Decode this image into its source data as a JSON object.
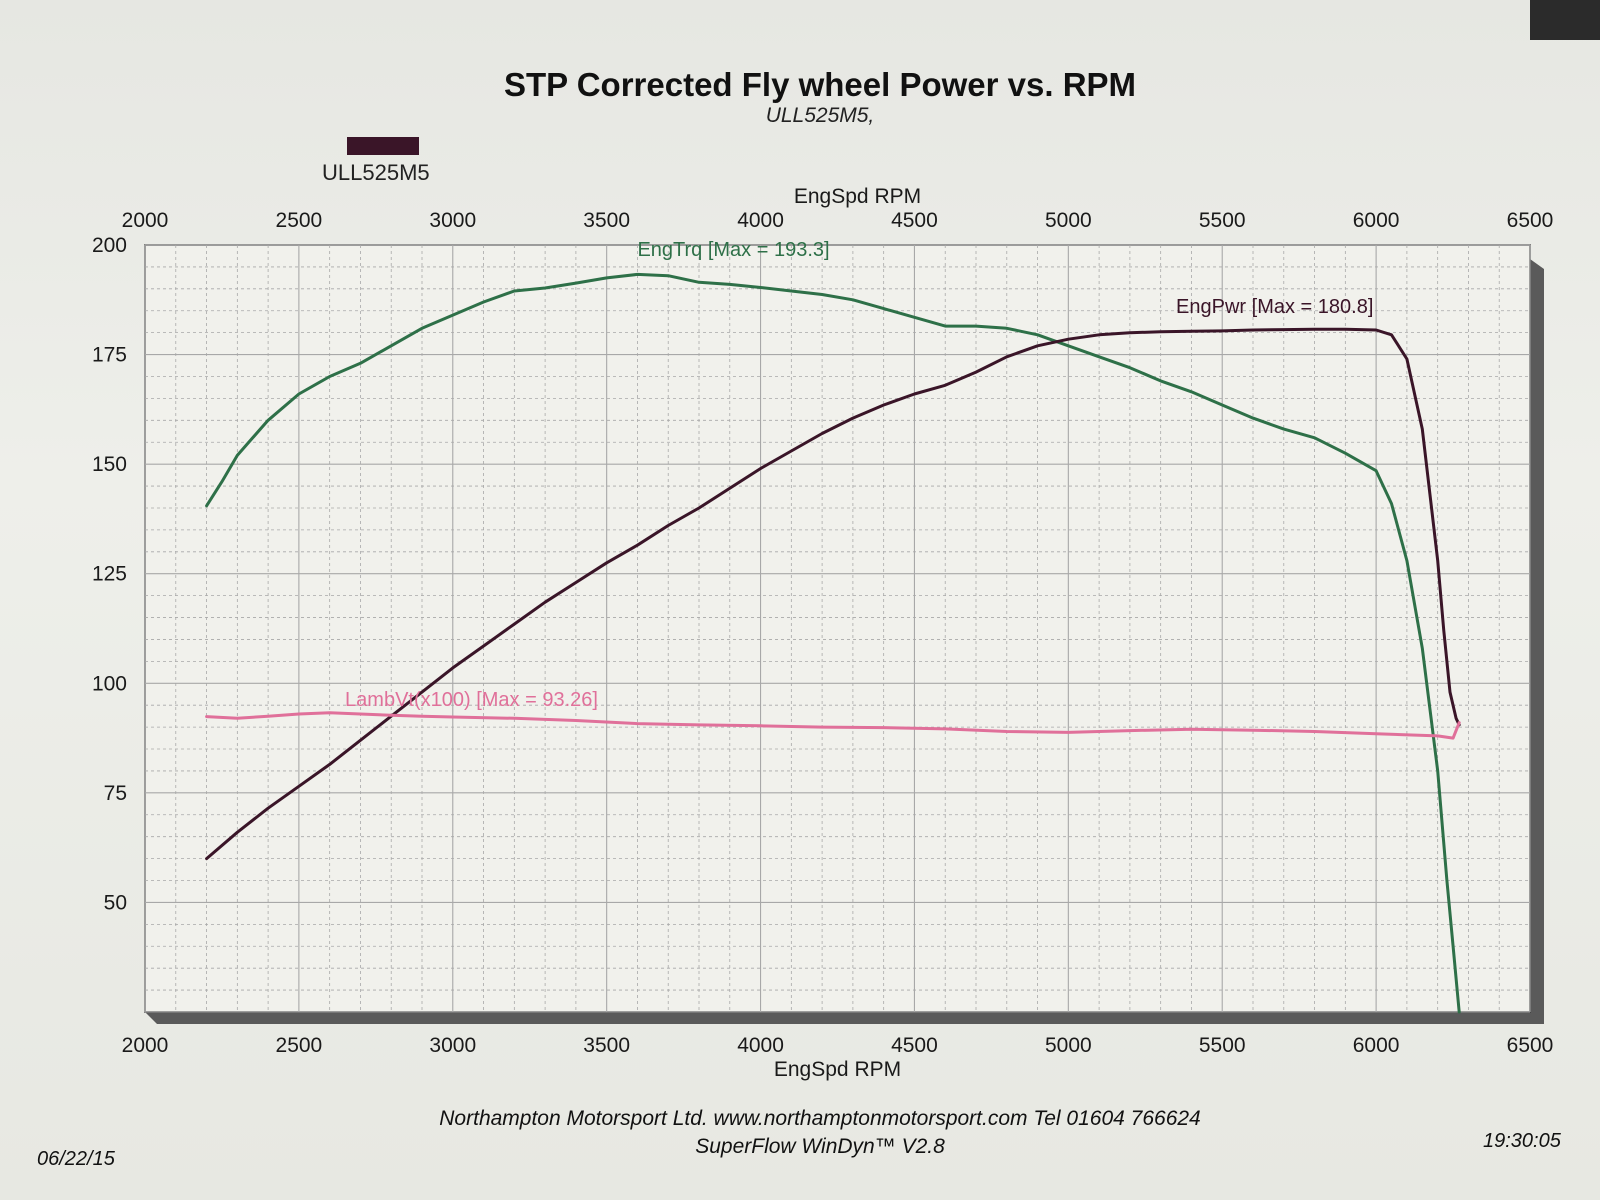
{
  "page": {
    "title": "STP Corrected Fly wheel Power vs. RPM",
    "subtitle": "ULL525M5,",
    "legend_label": "ULL525M5",
    "footer_company": "Northampton Motorsport Ltd. www.northamptonmotorsport.com Tel 01604 766624",
    "footer_software": "SuperFlow WinDyn™ V2.8",
    "date": "06/22/15",
    "time": "19:30:05"
  },
  "colors": {
    "torque": "#2e7048",
    "power": "#3a1528",
    "lambda": "#e0709a",
    "grid": "#a8a8a8",
    "legend_swatch": "#3a1528"
  },
  "chart_data": {
    "type": "line",
    "title": "STP Corrected Fly wheel Power vs. RPM",
    "subtitle": "ULL525M5,",
    "xlabel": "EngSpd  RPM",
    "xlim": [
      2000,
      6500
    ],
    "ylim": [
      25,
      200
    ],
    "x_ticks": [
      2000,
      2500,
      3000,
      3500,
      4000,
      4500,
      5000,
      5500,
      6000,
      6500
    ],
    "y_ticks": [
      50,
      75,
      100,
      125,
      150,
      175,
      200
    ],
    "grid": true,
    "legend": [
      {
        "name": "ULL525M5",
        "position": "top-left"
      }
    ],
    "series": [
      {
        "name": "EngTrq [Max = 193.3]",
        "color_key": "torque",
        "x": [
          2200,
          2250,
          2300,
          2350,
          2400,
          2500,
          2600,
          2700,
          2800,
          2900,
          3000,
          3100,
          3200,
          3300,
          3400,
          3500,
          3600,
          3700,
          3800,
          3900,
          4000,
          4100,
          4200,
          4300,
          4400,
          4500,
          4600,
          4700,
          4800,
          4900,
          5000,
          5100,
          5200,
          5300,
          5400,
          5500,
          5600,
          5700,
          5800,
          5900,
          6000,
          6050,
          6100,
          6150,
          6200,
          6230,
          6250,
          6270
        ],
        "y": [
          140.5,
          146,
          152,
          156,
          160,
          166,
          170,
          173,
          177,
          181,
          184,
          187,
          189.5,
          190.2,
          191.3,
          192.5,
          193.3,
          193,
          191.5,
          191,
          190.3,
          189.5,
          188.7,
          187.5,
          185.5,
          183.5,
          181.5,
          181.5,
          181,
          179.5,
          177,
          174.5,
          172,
          169,
          166.5,
          163.5,
          160.5,
          158,
          156,
          152.5,
          148.5,
          141,
          128,
          108,
          80,
          55,
          40,
          25
        ]
      },
      {
        "name": "EngPwr [Max = 180.8]",
        "color_key": "power",
        "x": [
          2200,
          2300,
          2400,
          2500,
          2600,
          2700,
          2800,
          2900,
          3000,
          3100,
          3200,
          3300,
          3400,
          3500,
          3600,
          3700,
          3800,
          3900,
          4000,
          4100,
          4200,
          4300,
          4400,
          4500,
          4600,
          4700,
          4800,
          4900,
          5000,
          5100,
          5200,
          5300,
          5400,
          5500,
          5600,
          5700,
          5800,
          5900,
          6000,
          6050,
          6100,
          6150,
          6200,
          6220,
          6240,
          6260,
          6270
        ],
        "y": [
          60,
          66,
          71.5,
          76.5,
          81.5,
          87,
          92.5,
          98,
          103.5,
          108.5,
          113.5,
          118.5,
          123,
          127.5,
          131.5,
          136,
          140,
          144.5,
          149,
          153,
          157,
          160.5,
          163.5,
          166,
          168,
          171,
          174.5,
          177,
          178.5,
          179.5,
          180,
          180.2,
          180.3,
          180.4,
          180.6,
          180.7,
          180.8,
          180.8,
          180.6,
          179.5,
          174,
          158,
          128,
          112,
          98,
          92,
          90.5
        ]
      },
      {
        "name": "LambVt(x100) [Max = 93.26]",
        "color_key": "lambda",
        "x": [
          2200,
          2300,
          2400,
          2500,
          2600,
          2700,
          2800,
          2900,
          3000,
          3200,
          3400,
          3600,
          3800,
          4000,
          4200,
          4400,
          4600,
          4800,
          5000,
          5200,
          5400,
          5600,
          5800,
          6000,
          6200,
          6250,
          6270
        ],
        "y": [
          92.4,
          92,
          92.5,
          93,
          93.26,
          93,
          92.7,
          92.5,
          92.3,
          92,
          91.5,
          90.8,
          90.5,
          90.3,
          90,
          89.9,
          89.6,
          89,
          88.8,
          89.2,
          89.5,
          89.3,
          89,
          88.5,
          88,
          87.5,
          91
        ]
      }
    ],
    "annotations": [
      {
        "text": "EngTrq [Max = 193.3]",
        "color_key": "torque"
      },
      {
        "text": "EngPwr [Max = 180.8]",
        "color_key": "power"
      },
      {
        "text": "LambVt(x100) [Max = 93.26]",
        "color_key": "lambda"
      }
    ]
  }
}
